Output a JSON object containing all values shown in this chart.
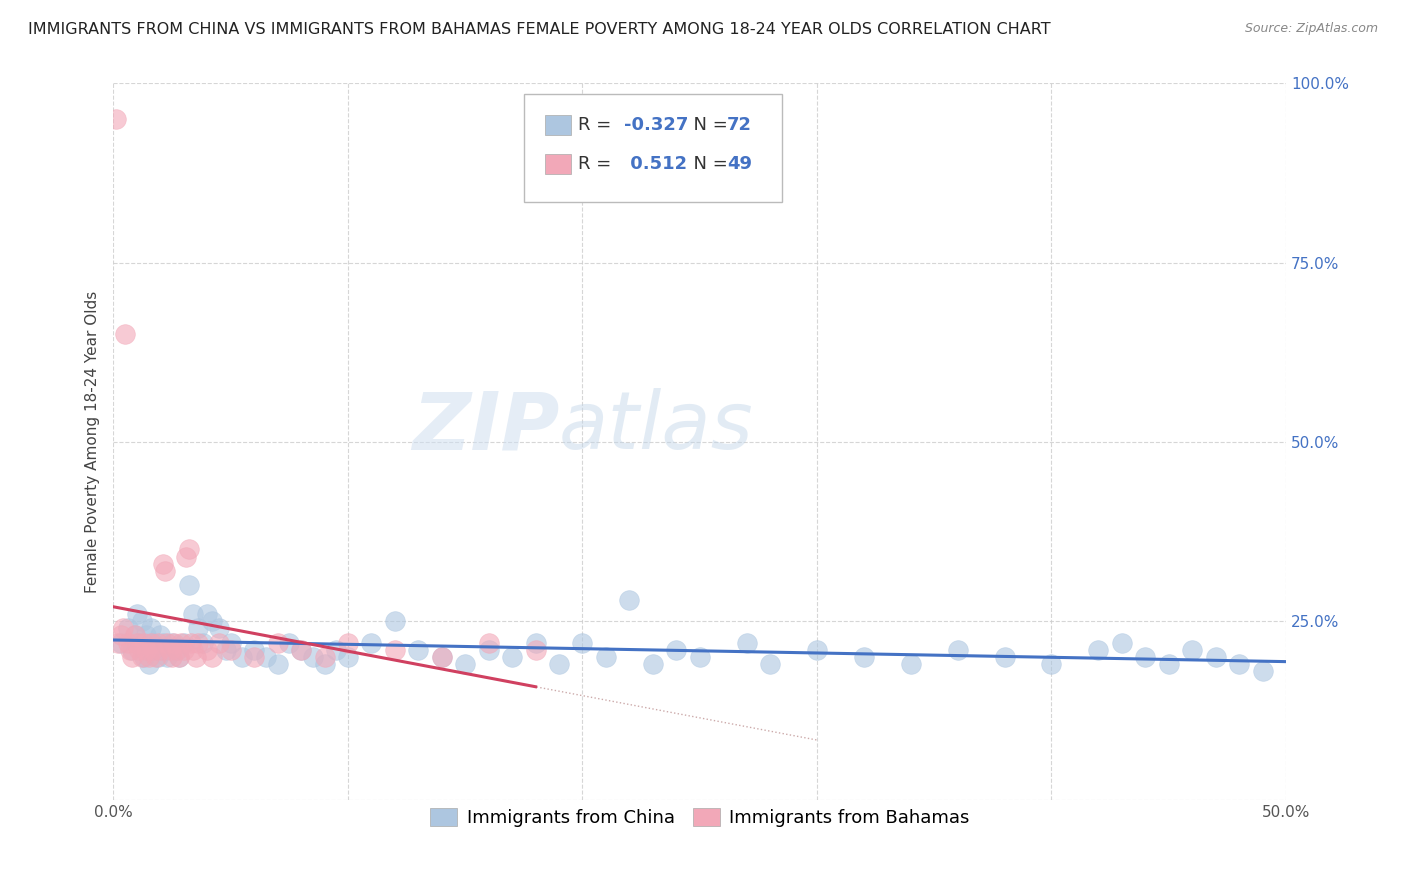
{
  "title": "IMMIGRANTS FROM CHINA VS IMMIGRANTS FROM BAHAMAS FEMALE POVERTY AMONG 18-24 YEAR OLDS CORRELATION CHART",
  "source": "Source: ZipAtlas.com",
  "ylabel": "Female Poverty Among 18-24 Year Olds",
  "xlim": [
    0,
    0.5
  ],
  "ylim": [
    0,
    1.0
  ],
  "china_R": -0.327,
  "china_N": 72,
  "bahamas_R": 0.512,
  "bahamas_N": 49,
  "china_color": "#adc6e0",
  "bahamas_color": "#f2a8b8",
  "china_line_color": "#4472c4",
  "bahamas_line_color": "#d04060",
  "bahamas_dash_color": "#d8a0b0",
  "china_label": "Immigrants from China",
  "bahamas_label": "Immigrants from Bahamas",
  "watermark_zip": "ZIP",
  "watermark_atlas": "atlas",
  "background_color": "#ffffff",
  "grid_color": "#cccccc",
  "title_fontsize": 11.5,
  "axis_fontsize": 11,
  "legend_fontsize": 13,
  "stat_color": "#4472c4",
  "china_x": [
    0.003,
    0.006,
    0.008,
    0.009,
    0.01,
    0.011,
    0.012,
    0.013,
    0.014,
    0.015,
    0.016,
    0.017,
    0.018,
    0.019,
    0.02,
    0.021,
    0.022,
    0.023,
    0.025,
    0.027,
    0.028,
    0.03,
    0.032,
    0.034,
    0.036,
    0.038,
    0.04,
    0.042,
    0.045,
    0.048,
    0.05,
    0.055,
    0.06,
    0.065,
    0.07,
    0.075,
    0.08,
    0.085,
    0.09,
    0.095,
    0.1,
    0.11,
    0.12,
    0.13,
    0.14,
    0.15,
    0.16,
    0.17,
    0.18,
    0.19,
    0.2,
    0.21,
    0.22,
    0.23,
    0.24,
    0.25,
    0.27,
    0.28,
    0.3,
    0.32,
    0.34,
    0.36,
    0.38,
    0.4,
    0.42,
    0.43,
    0.44,
    0.45,
    0.46,
    0.47,
    0.48,
    0.49
  ],
  "china_y": [
    0.22,
    0.24,
    0.21,
    0.23,
    0.26,
    0.22,
    0.25,
    0.2,
    0.23,
    0.19,
    0.24,
    0.22,
    0.21,
    0.2,
    0.23,
    0.22,
    0.21,
    0.2,
    0.22,
    0.21,
    0.2,
    0.22,
    0.3,
    0.26,
    0.24,
    0.22,
    0.26,
    0.25,
    0.24,
    0.21,
    0.22,
    0.2,
    0.21,
    0.2,
    0.19,
    0.22,
    0.21,
    0.2,
    0.19,
    0.21,
    0.2,
    0.22,
    0.25,
    0.21,
    0.2,
    0.19,
    0.21,
    0.2,
    0.22,
    0.19,
    0.22,
    0.2,
    0.28,
    0.19,
    0.21,
    0.2,
    0.22,
    0.19,
    0.21,
    0.2,
    0.19,
    0.21,
    0.2,
    0.19,
    0.21,
    0.22,
    0.2,
    0.19,
    0.21,
    0.2,
    0.19,
    0.18
  ],
  "bahamas_x": [
    0.001,
    0.002,
    0.003,
    0.004,
    0.005,
    0.006,
    0.007,
    0.008,
    0.009,
    0.01,
    0.011,
    0.012,
    0.013,
    0.014,
    0.015,
    0.016,
    0.017,
    0.018,
    0.019,
    0.02,
    0.021,
    0.022,
    0.023,
    0.024,
    0.025,
    0.026,
    0.027,
    0.028,
    0.029,
    0.03,
    0.031,
    0.032,
    0.033,
    0.034,
    0.035,
    0.036,
    0.04,
    0.042,
    0.045,
    0.05,
    0.06,
    0.07,
    0.08,
    0.09,
    0.1,
    0.12,
    0.14,
    0.16,
    0.18
  ],
  "bahamas_y": [
    0.95,
    0.22,
    0.23,
    0.24,
    0.65,
    0.22,
    0.21,
    0.2,
    0.23,
    0.22,
    0.21,
    0.2,
    0.22,
    0.21,
    0.2,
    0.22,
    0.21,
    0.2,
    0.22,
    0.21,
    0.33,
    0.32,
    0.22,
    0.21,
    0.2,
    0.22,
    0.21,
    0.2,
    0.22,
    0.21,
    0.34,
    0.35,
    0.22,
    0.21,
    0.2,
    0.22,
    0.21,
    0.2,
    0.22,
    0.21,
    0.2,
    0.22,
    0.21,
    0.2,
    0.22,
    0.21,
    0.2,
    0.22,
    0.21
  ]
}
